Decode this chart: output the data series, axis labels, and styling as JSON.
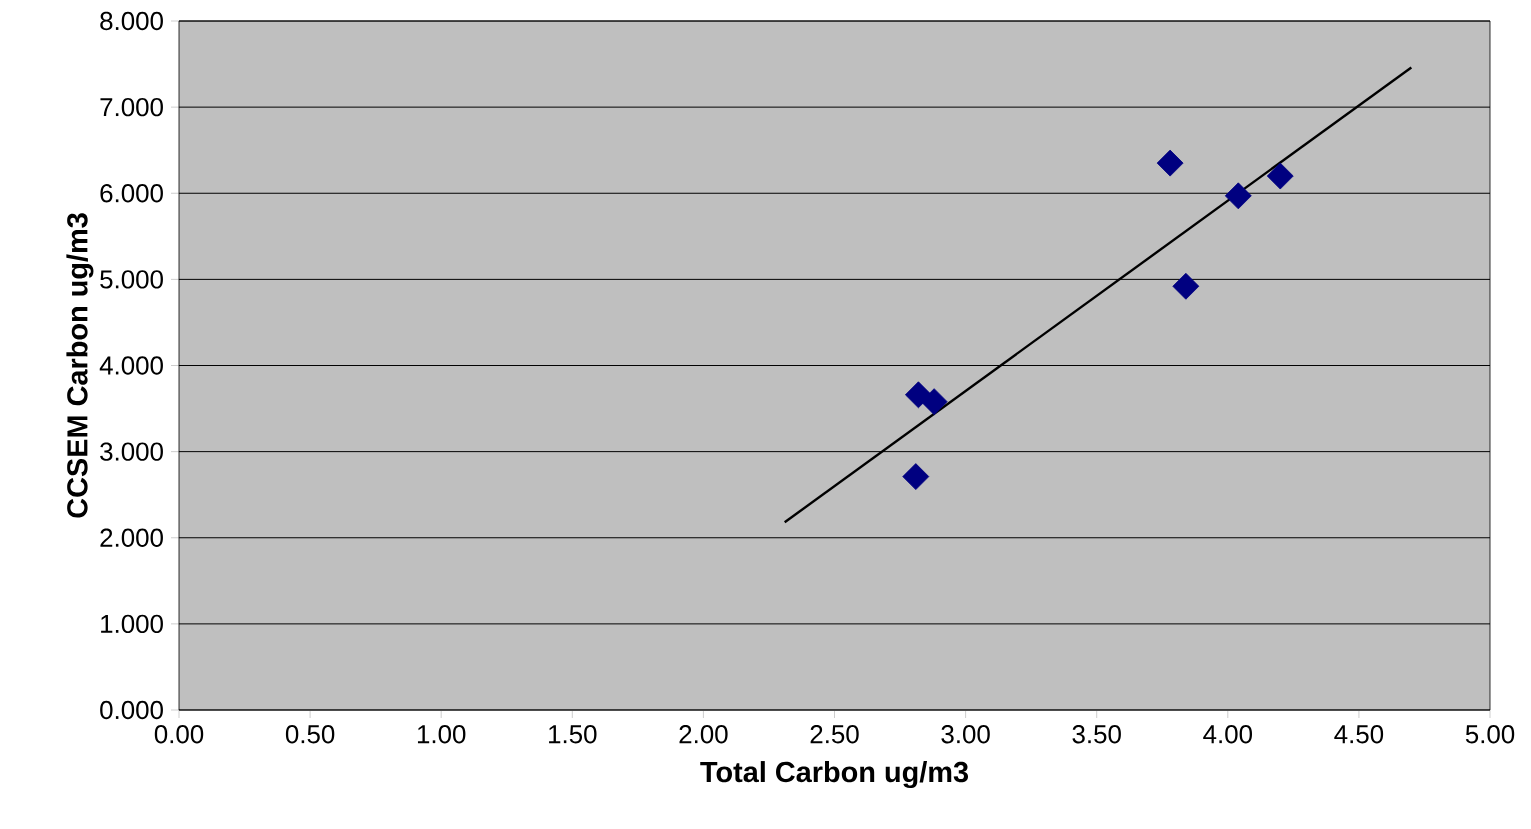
{
  "chart_data": {
    "type": "scatter",
    "xlabel": "Total Carbon ug/m3",
    "ylabel": "CCSEM Carbon ug/m3",
    "xlim": [
      0,
      5
    ],
    "ylim": [
      0,
      8
    ],
    "xticks": [
      {
        "value": 0,
        "label": "0.00"
      },
      {
        "value": 0.5,
        "label": "0.50"
      },
      {
        "value": 1,
        "label": "1.00"
      },
      {
        "value": 1.5,
        "label": "1.50"
      },
      {
        "value": 2,
        "label": "2.00"
      },
      {
        "value": 2.5,
        "label": "2.50"
      },
      {
        "value": 3,
        "label": "3.00"
      },
      {
        "value": 3.5,
        "label": "3.50"
      },
      {
        "value": 4,
        "label": "4.00"
      },
      {
        "value": 4.5,
        "label": "4.50"
      },
      {
        "value": 5,
        "label": "5.00"
      }
    ],
    "yticks": [
      {
        "value": 0,
        "label": "0.000"
      },
      {
        "value": 1,
        "label": "1.000"
      },
      {
        "value": 2,
        "label": "2.000"
      },
      {
        "value": 3,
        "label": "3.000"
      },
      {
        "value": 4,
        "label": "4.000"
      },
      {
        "value": 5,
        "label": "5.000"
      },
      {
        "value": 6,
        "label": "6.000"
      },
      {
        "value": 7,
        "label": "7.000"
      },
      {
        "value": 8,
        "label": "8.000"
      }
    ],
    "grid": "y",
    "series": [
      {
        "color": "#000080",
        "marker": "diamond",
        "x": [
          2.81,
          2.82,
          2.88,
          3.78,
          3.84,
          4.04,
          4.2
        ],
        "values": [
          2.71,
          3.66,
          3.58,
          6.35,
          4.92,
          5.97,
          6.2
        ]
      },
      {
        "type": "line",
        "color": "#000000",
        "marker": "none",
        "x": [
          2.31,
          4.7
        ],
        "values": [
          2.18,
          7.46
        ]
      }
    ]
  }
}
